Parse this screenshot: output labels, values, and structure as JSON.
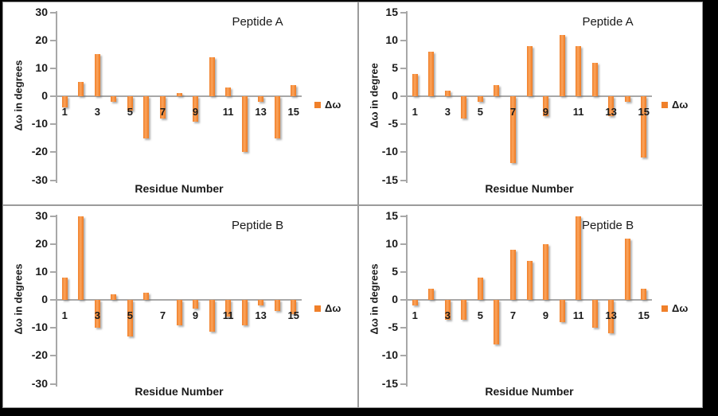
{
  "page": {
    "background": "#000000",
    "canvas_background": "#ffffff"
  },
  "colors": {
    "bar": "#F0802A",
    "bar_highlight": "#FBA45C",
    "axis": "#A8A8A8",
    "text": "#1a1a1a",
    "panel_border": "#9b9b9b"
  },
  "chart_data": [
    {
      "type": "bar",
      "title": "Peptide A",
      "ylabel": "Δω in degrees",
      "xlabel": "Residue Number",
      "legend": "Δω",
      "ylim": [
        -30,
        30
      ],
      "yticks": [
        30,
        20,
        10,
        0,
        -10,
        -20,
        -30
      ],
      "categories": [
        1,
        2,
        3,
        4,
        5,
        6,
        7,
        8,
        9,
        10,
        11,
        12,
        13,
        14,
        15
      ],
      "xticks_shown": [
        "1",
        "3",
        "5",
        "7",
        "9",
        "11",
        "13",
        "15"
      ],
      "values": [
        -4,
        5,
        15,
        -2,
        -5,
        -15,
        -8,
        1,
        -9,
        14,
        3,
        -20,
        -2,
        -15,
        4
      ],
      "grid": false,
      "legend_position": "right"
    },
    {
      "type": "bar",
      "title": "Peptide A",
      "ylabel": "Δω in degree",
      "xlabel": "Residue Number",
      "legend": "Δω",
      "ylim": [
        -15,
        15
      ],
      "yticks": [
        15,
        10,
        5,
        0,
        -5,
        -10,
        -15
      ],
      "categories": [
        1,
        2,
        3,
        4,
        5,
        6,
        7,
        8,
        9,
        10,
        11,
        12,
        13,
        14,
        15
      ],
      "xticks_shown": [
        "1",
        "3",
        "5",
        "7",
        "9",
        "11",
        "13",
        "15"
      ],
      "values": [
        4,
        8,
        1,
        -4,
        -1,
        2,
        -12,
        9,
        -3.5,
        11,
        9,
        6,
        -3.5,
        -1,
        -11
      ],
      "grid": false,
      "legend_position": "right"
    },
    {
      "type": "bar",
      "title": "Peptide B",
      "ylabel": "Δω in degrees",
      "xlabel": "Residue Number",
      "legend": "Δω",
      "ylim": [
        -30,
        30
      ],
      "yticks": [
        30,
        20,
        10,
        0,
        -10,
        -20,
        -30
      ],
      "categories": [
        1,
        2,
        3,
        4,
        5,
        6,
        7,
        8,
        9,
        10,
        11,
        12,
        13,
        14,
        15
      ],
      "xticks_shown": [
        "1",
        "3",
        "5",
        "7",
        "9",
        "11",
        "13",
        "15"
      ],
      "values": [
        8,
        30,
        -10,
        2,
        -13,
        2.5,
        0,
        -9,
        -3,
        -11.5,
        -6,
        -9,
        -2,
        -4,
        -5
      ],
      "grid": false,
      "legend_position": "right"
    },
    {
      "type": "bar",
      "title": "Peptide B",
      "ylabel": "Δω in degrees",
      "xlabel": "Residue Number",
      "legend": "Δω",
      "ylim": [
        -15,
        15
      ],
      "yticks": [
        15,
        10,
        5,
        0,
        -5,
        -10,
        -15
      ],
      "categories": [
        1,
        2,
        3,
        4,
        5,
        6,
        7,
        8,
        9,
        10,
        11,
        12,
        13,
        14,
        15
      ],
      "xticks_shown": [
        "1",
        "3",
        "5",
        "7",
        "9",
        "11",
        "13",
        "15"
      ],
      "values": [
        -1,
        2,
        -3.5,
        -3.5,
        4,
        -8,
        9,
        7,
        10,
        -4,
        15,
        -5,
        -6,
        11,
        2
      ],
      "grid": false,
      "legend_position": "right"
    }
  ]
}
